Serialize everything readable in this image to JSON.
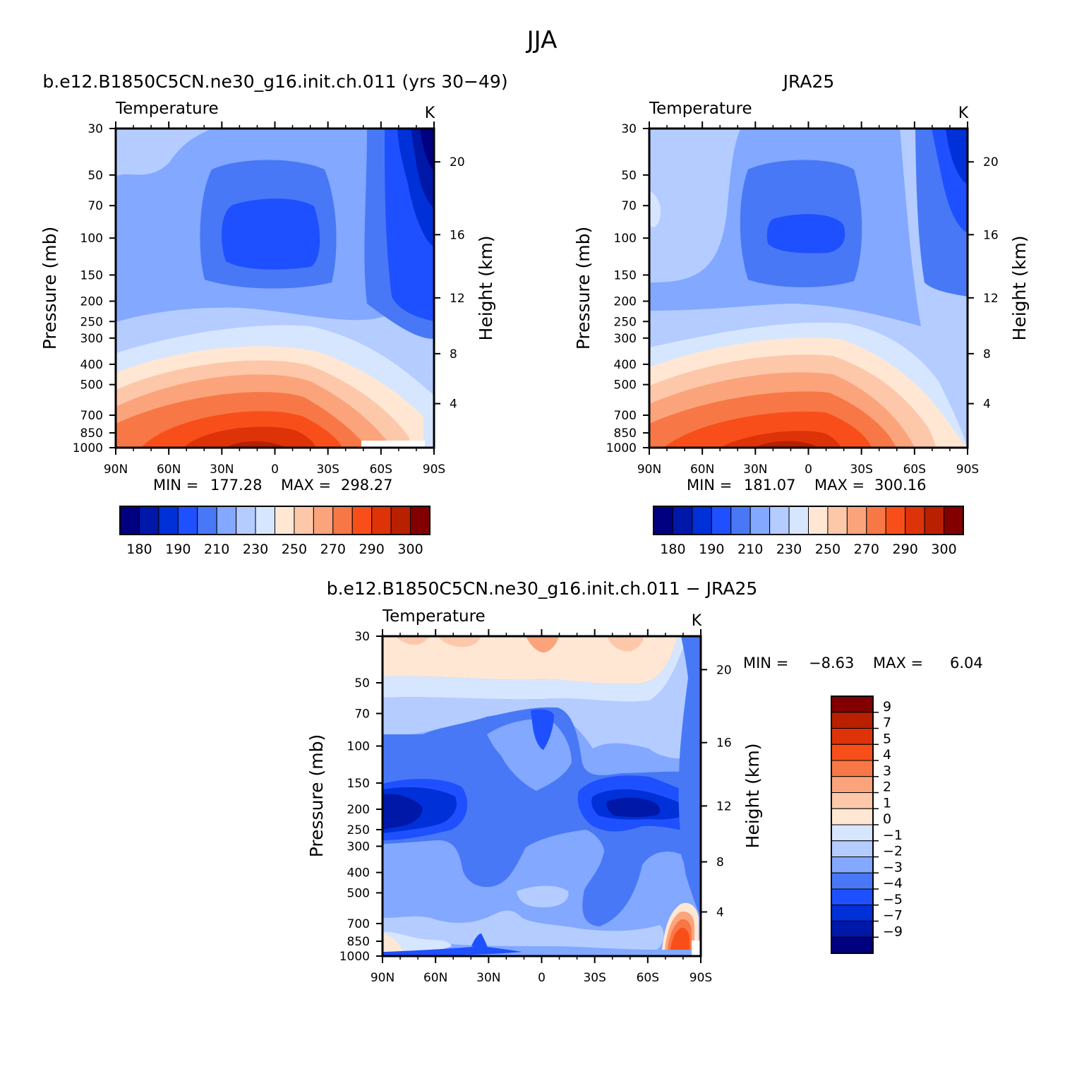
{
  "figure": {
    "title": "JJA",
    "panel_left_title": "b.e12.B1850C5CN.ne30_g16.init.ch.011 (yrs 30−49)",
    "panel_right_title": "JRA25",
    "panel_diff_title": "b.e12.B1850C5CN.ne30_g16.init.ch.011 − JRA25"
  },
  "chart_data": [
    {
      "id": "model",
      "type": "heatmap",
      "subtitle": "Temperature",
      "units": "K",
      "ylabel": "Pressure (mb)",
      "y2label": "Height (km)",
      "x_ticks": [
        "90N",
        "60N",
        "30N",
        "0",
        "30S",
        "60S",
        "90S"
      ],
      "xlim": [
        90,
        -90
      ],
      "y_ticks": [
        30,
        50,
        70,
        100,
        150,
        200,
        250,
        300,
        400,
        500,
        700,
        850,
        1000
      ],
      "ylim": [
        30,
        1000
      ],
      "y_scale": "log",
      "y2_ticks": [
        4,
        8,
        12,
        16,
        20
      ],
      "stats": {
        "min_label": "MIN =",
        "min": "177.28",
        "max_label": "MAX =",
        "max": "298.27"
      },
      "min_value": 177.28,
      "max_value": 298.27,
      "colorbar": {
        "orientation": "horizontal",
        "tick_labels": [
          "180",
          "190",
          "210",
          "230",
          "250",
          "270",
          "290",
          "300"
        ],
        "colors": [
          "#000080",
          "#0018a8",
          "#0030d8",
          "#1e50ff",
          "#4878f5",
          "#82a8ff",
          "#b4ccff",
          "#d6e6ff",
          "#ffe7d4",
          "#fdc8aa",
          "#fba47c",
          "#f77846",
          "#f84f1a",
          "#de3308",
          "#b82000",
          "#820000"
        ]
      }
    },
    {
      "id": "obs",
      "type": "heatmap",
      "subtitle": "Temperature",
      "units": "K",
      "ylabel": "Pressure (mb)",
      "y2label": "Height (km)",
      "x_ticks": [
        "90N",
        "60N",
        "30N",
        "0",
        "30S",
        "60S",
        "90S"
      ],
      "xlim": [
        90,
        -90
      ],
      "y_ticks": [
        30,
        50,
        70,
        100,
        150,
        200,
        250,
        300,
        400,
        500,
        700,
        850,
        1000
      ],
      "ylim": [
        30,
        1000
      ],
      "y_scale": "log",
      "y2_ticks": [
        4,
        8,
        12,
        16,
        20
      ],
      "stats": {
        "min_label": "MIN =",
        "min": "181.07",
        "max_label": "MAX =",
        "max": "300.16"
      },
      "min_value": 181.07,
      "max_value": 300.16,
      "colorbar": {
        "orientation": "horizontal",
        "tick_labels": [
          "180",
          "190",
          "210",
          "230",
          "250",
          "270",
          "290",
          "300"
        ],
        "colors": [
          "#000080",
          "#0018a8",
          "#0030d8",
          "#1e50ff",
          "#4878f5",
          "#82a8ff",
          "#b4ccff",
          "#d6e6ff",
          "#ffe7d4",
          "#fdc8aa",
          "#fba47c",
          "#f77846",
          "#f84f1a",
          "#de3308",
          "#b82000",
          "#820000"
        ]
      }
    },
    {
      "id": "diff",
      "type": "heatmap",
      "subtitle": "Temperature",
      "units": "K",
      "ylabel": "Pressure (mb)",
      "y2label": "Height (km)",
      "x_ticks": [
        "90N",
        "60N",
        "30N",
        "0",
        "30S",
        "60S",
        "90S"
      ],
      "xlim": [
        90,
        -90
      ],
      "y_ticks": [
        30,
        50,
        70,
        100,
        150,
        200,
        250,
        300,
        400,
        500,
        700,
        850,
        1000
      ],
      "ylim": [
        30,
        1000
      ],
      "y_scale": "log",
      "y2_ticks": [
        4,
        8,
        12,
        16,
        20
      ],
      "stats": {
        "min_label": "MIN =",
        "min": "−8.63",
        "max_label": "MAX =",
        "max": "6.04"
      },
      "min_value": -8.63,
      "max_value": 6.04,
      "colorbar": {
        "orientation": "vertical",
        "tick_labels": [
          "9",
          "7",
          "5",
          "4",
          "3",
          "2",
          "1",
          "0",
          "−1",
          "−2",
          "−3",
          "−4",
          "−5",
          "−7",
          "−9"
        ],
        "colors": [
          "#820000",
          "#b82000",
          "#de3308",
          "#f84f1a",
          "#f77846",
          "#fba47c",
          "#fdc8aa",
          "#ffe7d4",
          "#d6e6ff",
          "#b4ccff",
          "#82a8ff",
          "#4878f5",
          "#1e50ff",
          "#0030d8",
          "#0018a8",
          "#000080"
        ]
      }
    }
  ]
}
